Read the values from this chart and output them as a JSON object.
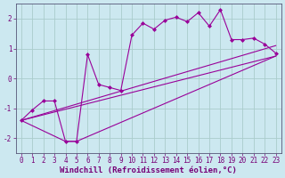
{
  "background_color": "#cce8f0",
  "grid_color": "#aacccc",
  "line_color": "#990099",
  "marker_color": "#990099",
  "xlabel": "Windchill (Refroidissement éolien,°C)",
  "xlabel_fontsize": 6.5,
  "tick_fontsize": 5.5,
  "xlim": [
    -0.5,
    23.5
  ],
  "ylim": [
    -2.5,
    2.5
  ],
  "yticks": [
    -2,
    -1,
    0,
    1,
    2
  ],
  "xticks": [
    0,
    1,
    2,
    3,
    4,
    5,
    6,
    7,
    8,
    9,
    10,
    11,
    12,
    13,
    14,
    15,
    16,
    17,
    18,
    19,
    20,
    21,
    22,
    23
  ],
  "series1_x": [
    0,
    1,
    2,
    3,
    4,
    5,
    6,
    7,
    8,
    9,
    10,
    11,
    12,
    13,
    14,
    15,
    16,
    17,
    18,
    19,
    20,
    21,
    22,
    23
  ],
  "series1_y": [
    -1.4,
    -1.05,
    -0.75,
    -0.75,
    -2.1,
    -2.1,
    0.8,
    -0.2,
    -0.3,
    -0.4,
    1.45,
    1.85,
    1.65,
    1.95,
    2.05,
    1.9,
    2.2,
    1.75,
    2.3,
    1.3,
    1.3,
    1.35,
    1.15,
    0.85
  ],
  "series2_x": [
    0,
    23
  ],
  "series2_y": [
    -1.4,
    0.75
  ],
  "series3_x": [
    0,
    4,
    5,
    23
  ],
  "series3_y": [
    -1.4,
    -2.1,
    -2.1,
    0.75
  ],
  "series4_x": [
    0,
    23
  ],
  "series4_y": [
    -1.4,
    1.1
  ]
}
